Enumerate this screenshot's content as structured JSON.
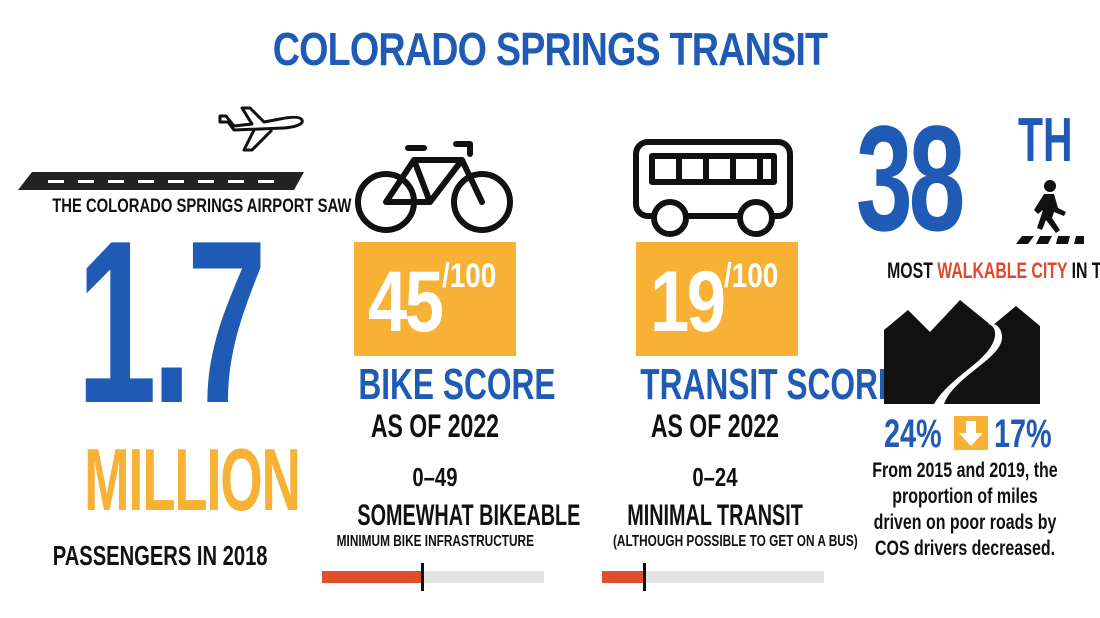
{
  "title": "COLORADO SPRINGS TRANSIT",
  "airport": {
    "intro": "THE COLORADO SPRINGS AIRPORT SAW",
    "number": "1.7",
    "unit": "MILLION",
    "caption": "PASSENGERS IN 2018",
    "icon": "airplane-icon"
  },
  "bike": {
    "score": "45",
    "out_of": "/100",
    "label": "BIKE SCORE",
    "as_of": "AS OF 2022",
    "range": "0–49",
    "rating": "SOMEWHAT BIKEABLE",
    "description": "MINIMUM BIKE INFRASTRUCTURE",
    "level": 0.45,
    "icon": "bicycle-icon"
  },
  "transit": {
    "score": "19",
    "out_of": "/100",
    "label": "TRANSIT SCORE",
    "as_of": "AS OF 2022",
    "range": "0–24",
    "rating": "MINIMAL TRANSIT",
    "description": "(ALTHOUGH POSSIBLE TO GET ON A BUS)",
    "level": 0.19,
    "icon": "bus-icon"
  },
  "walk": {
    "rank": "38",
    "suffix": "TH",
    "caption_prefix": "MOST ",
    "caption_highlight": "WALKABLE CITY",
    "caption_suffix": " IN THE US",
    "icon": "pedestrian-crosswalk-icon"
  },
  "roads": {
    "from": "24%",
    "to": "17%",
    "text": "From 2015 and 2019, the proportion of miles driven on poor roads by COS drivers decreased.",
    "icon": "mountain-road-icon",
    "arrow_icon": "down-arrow-icon"
  },
  "colors": {
    "blue": "#1f5bb5",
    "orange": "#f7b135",
    "red": "#e04e2c",
    "walkable_red": "#e0492a"
  }
}
